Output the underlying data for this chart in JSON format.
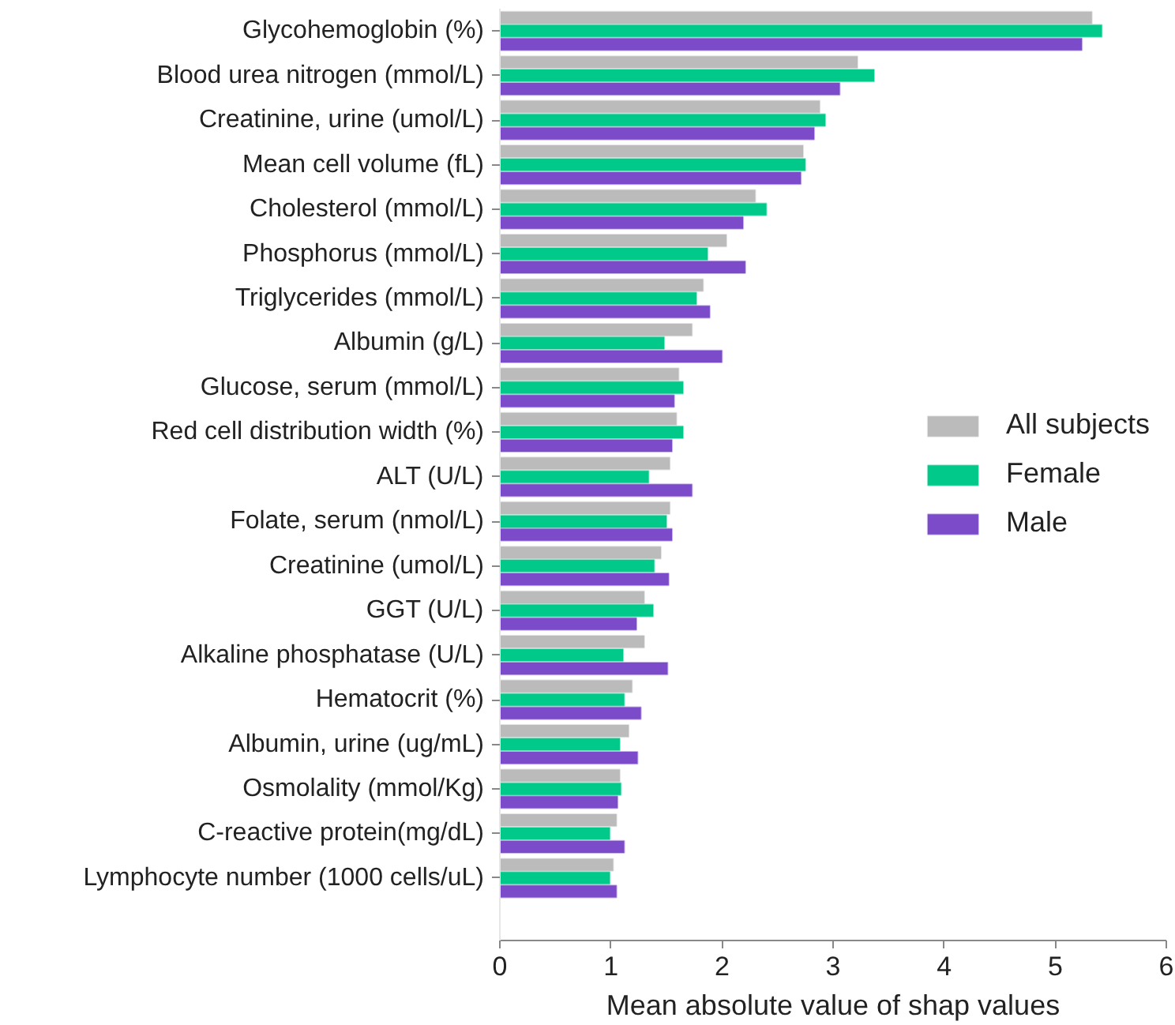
{
  "chart_data": {
    "type": "bar",
    "orientation": "horizontal",
    "xlabel": "Mean absolute value of shap values",
    "categories": [
      "Glycohemoglobin (%)",
      "Blood urea nitrogen (mmol/L)",
      "Creatinine, urine (umol/L)",
      "Mean cell volume (fL)",
      "Cholesterol (mmol/L)",
      "Phosphorus (mmol/L)",
      "Triglycerides (mmol/L)",
      "Albumin (g/L)",
      "Glucose, serum (mmol/L)",
      "Red cell distribution width (%)",
      "ALT (U/L)",
      "Folate, serum (nmol/L)",
      "Creatinine (umol/L)",
      "GGT (U/L)",
      "Alkaline phosphatase (U/L)",
      "Hematocrit (%)",
      "Albumin, urine (ug/mL)",
      "Osmolality (mmol/Kg)",
      "C-reactive protein(mg/dL)",
      "Lymphocyte number (1000 cells/uL)"
    ],
    "series": [
      {
        "name": "All subjects",
        "color": "#bbbbbb",
        "values": [
          5.33,
          3.22,
          2.88,
          2.73,
          2.3,
          2.04,
          1.83,
          1.73,
          1.61,
          1.59,
          1.53,
          1.53,
          1.45,
          1.3,
          1.3,
          1.19,
          1.16,
          1.08,
          1.05,
          1.02
        ]
      },
      {
        "name": "Female",
        "color": "#00c98a",
        "values": [
          5.42,
          3.37,
          2.93,
          2.75,
          2.4,
          1.87,
          1.77,
          1.48,
          1.65,
          1.65,
          1.34,
          1.5,
          1.39,
          1.38,
          1.11,
          1.12,
          1.08,
          1.09,
          0.99,
          0.99
        ]
      },
      {
        "name": "Male",
        "color": "#7b4bc9",
        "values": [
          5.24,
          3.06,
          2.83,
          2.71,
          2.19,
          2.21,
          1.89,
          2.0,
          1.57,
          1.55,
          1.73,
          1.55,
          1.52,
          1.23,
          1.51,
          1.27,
          1.24,
          1.06,
          1.12,
          1.05
        ]
      }
    ],
    "xlim": [
      0,
      6
    ],
    "xticks": [
      0,
      1,
      2,
      3,
      4,
      5,
      6
    ],
    "legend": "right"
  }
}
